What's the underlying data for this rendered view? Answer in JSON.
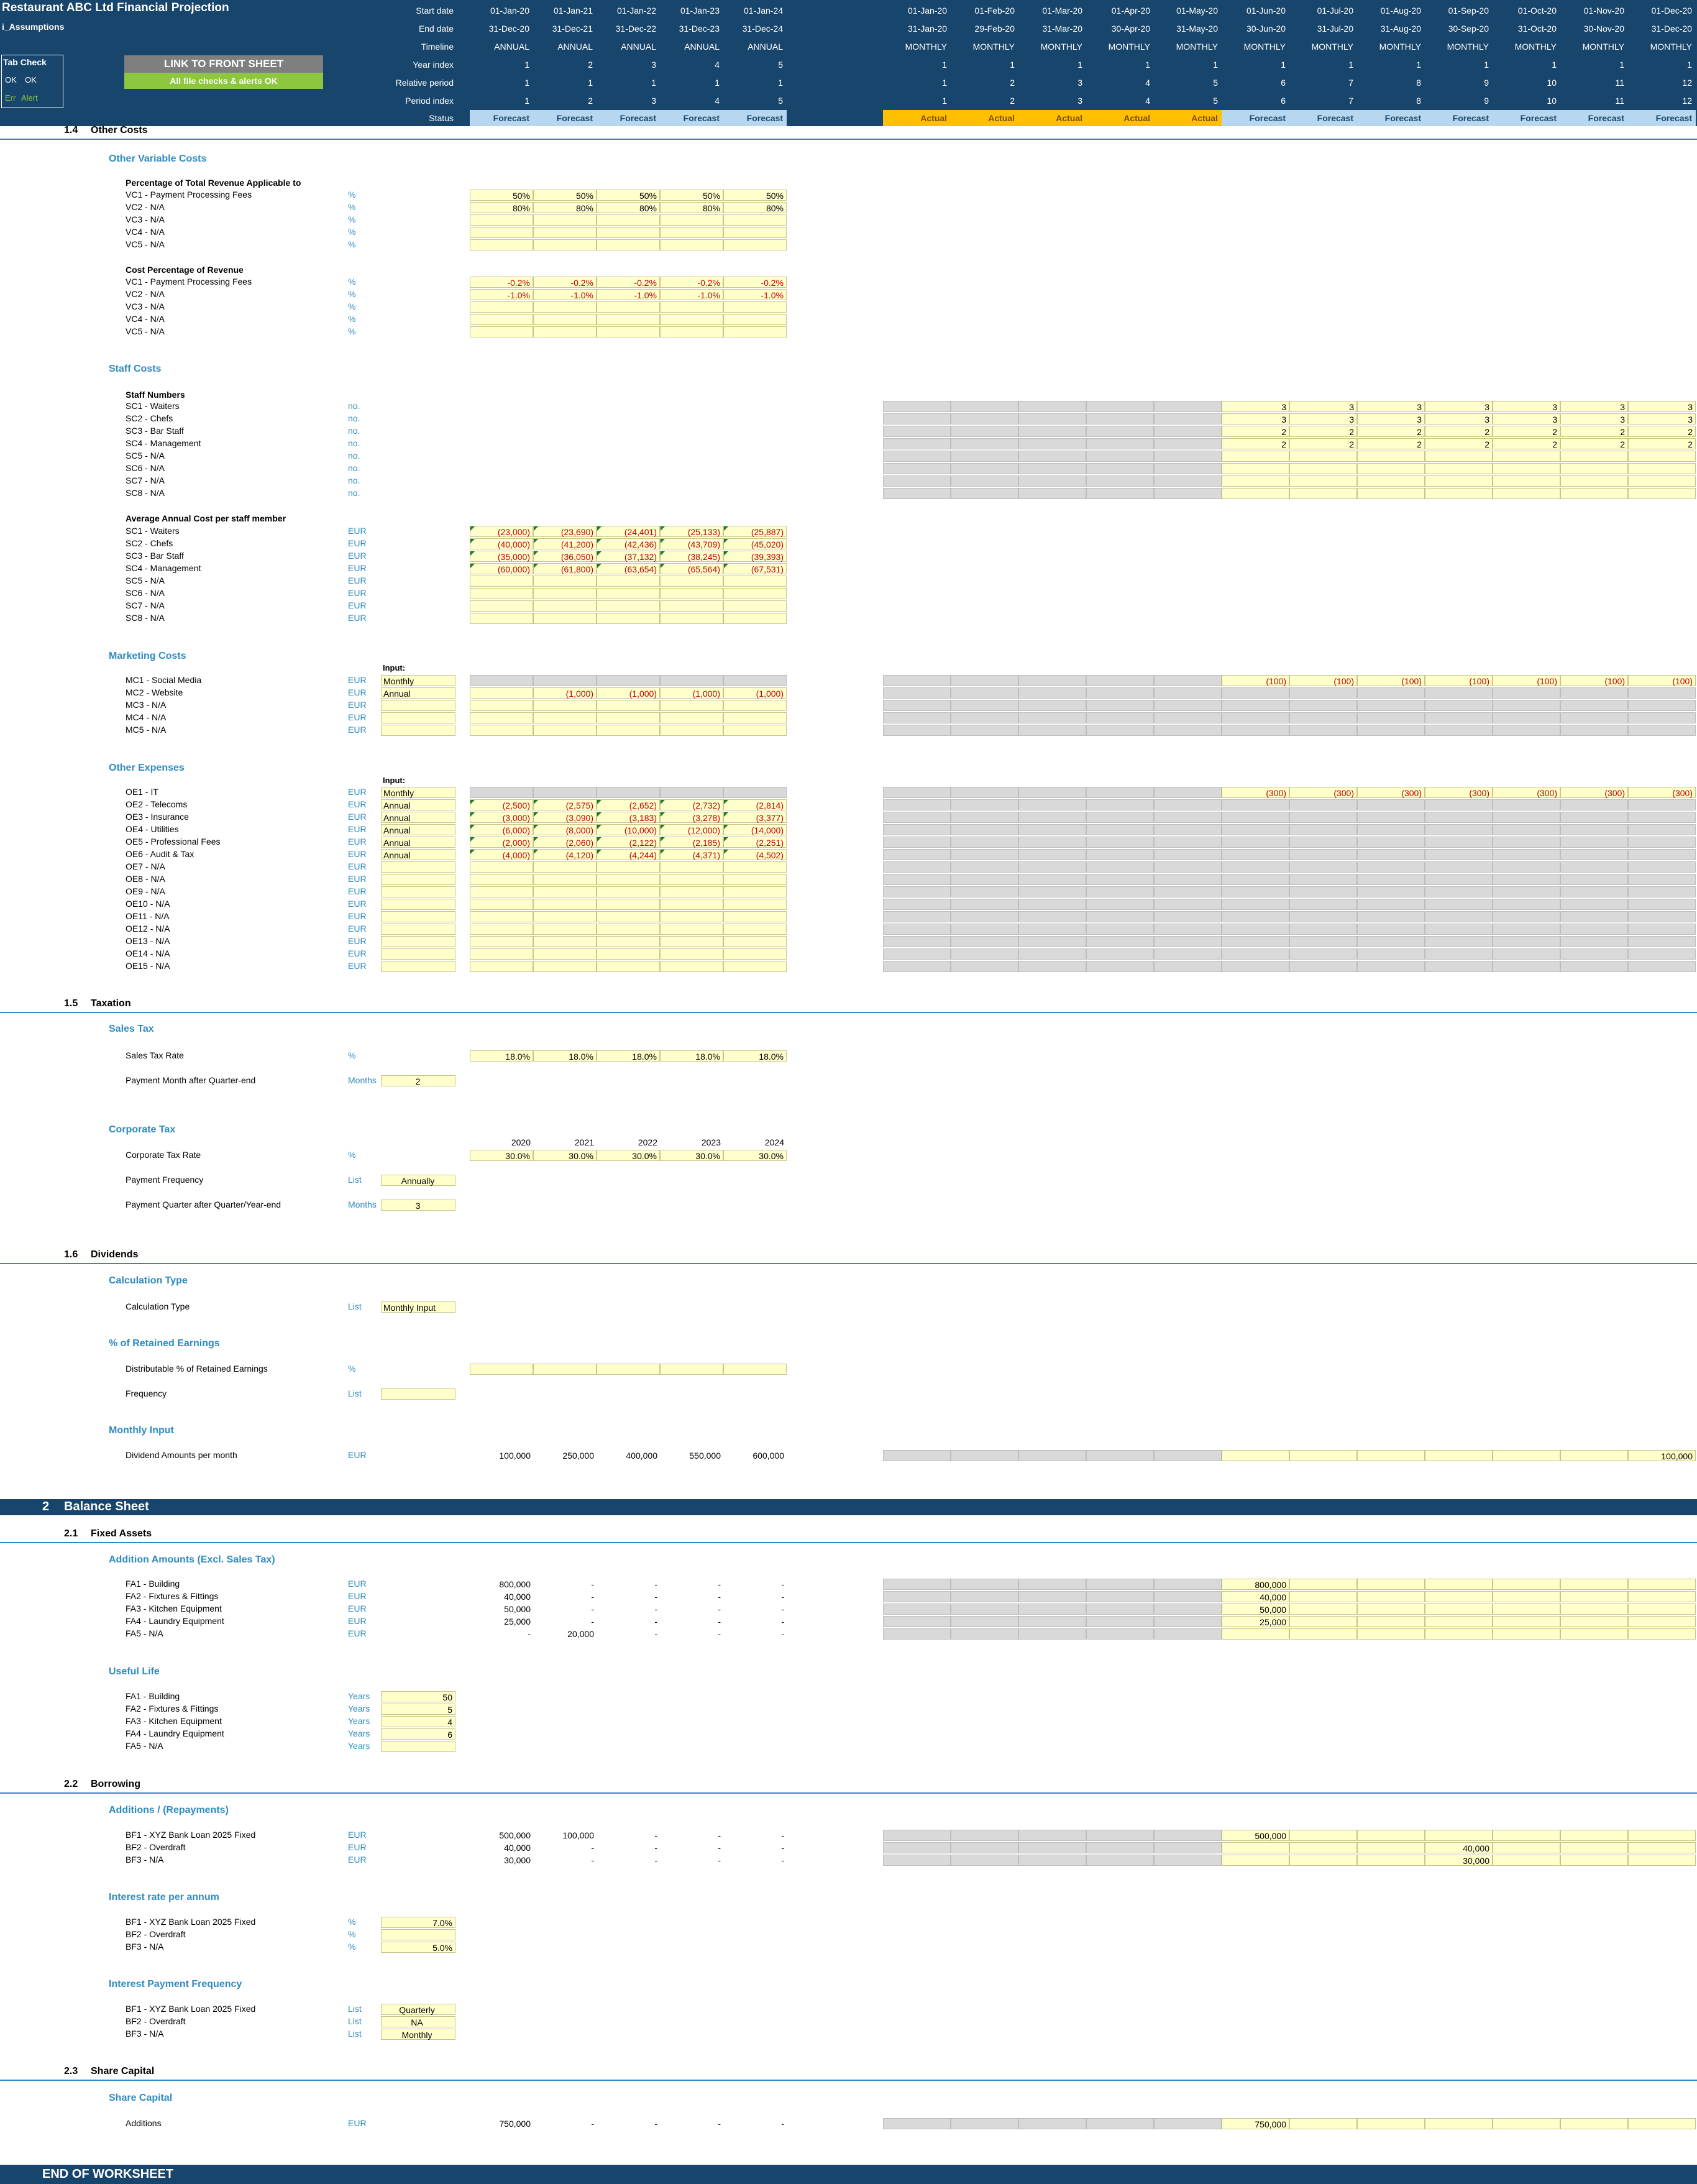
{
  "title": "Restaurant ABC Ltd Financial Projection",
  "sheet": "i_Assumptions",
  "tabcheck": {
    "title": "Tab Check",
    "ok1": "OK",
    "ok2": "OK",
    "err": "Err",
    "alert": "Alert"
  },
  "buttons": {
    "front": "LINK TO FRONT SHEET",
    "checks": "All file checks & alerts OK"
  },
  "row_labels": {
    "start": "Start date",
    "end": "End date",
    "timeline": "Timeline",
    "year": "Year index",
    "relative": "Relative period",
    "period": "Period index",
    "status": "Status"
  },
  "annual": {
    "start": [
      "01-Jan-20",
      "01-Jan-21",
      "01-Jan-22",
      "01-Jan-23",
      "01-Jan-24"
    ],
    "end": [
      "31-Dec-20",
      "31-Dec-21",
      "31-Dec-22",
      "31-Dec-23",
      "31-Dec-24"
    ],
    "timeline": [
      "ANNUAL",
      "ANNUAL",
      "ANNUAL",
      "ANNUAL",
      "ANNUAL"
    ],
    "year": [
      "1",
      "2",
      "3",
      "4",
      "5"
    ],
    "relative": [
      "1",
      "1",
      "1",
      "1",
      "1"
    ],
    "period": [
      "1",
      "2",
      "3",
      "4",
      "5"
    ],
    "status": [
      "Forecast",
      "Forecast",
      "Forecast",
      "Forecast",
      "Forecast"
    ]
  },
  "monthly": {
    "start": [
      "01-Jan-20",
      "01-Feb-20",
      "01-Mar-20",
      "01-Apr-20",
      "01-May-20",
      "01-Jun-20",
      "01-Jul-20",
      "01-Aug-20",
      "01-Sep-20",
      "01-Oct-20",
      "01-Nov-20",
      "01-Dec-20"
    ],
    "end": [
      "31-Jan-20",
      "29-Feb-20",
      "31-Mar-20",
      "30-Apr-20",
      "31-May-20",
      "30-Jun-20",
      "31-Jul-20",
      "31-Aug-20",
      "30-Sep-20",
      "31-Oct-20",
      "30-Nov-20",
      "31-Dec-20"
    ],
    "timeline": [
      "MONTHLY",
      "MONTHLY",
      "MONTHLY",
      "MONTHLY",
      "MONTHLY",
      "MONTHLY",
      "MONTHLY",
      "MONTHLY",
      "MONTHLY",
      "MONTHLY",
      "MONTHLY",
      "MONTHLY"
    ],
    "year": [
      "1",
      "1",
      "1",
      "1",
      "1",
      "1",
      "1",
      "1",
      "1",
      "1",
      "1",
      "1"
    ],
    "relative": [
      "1",
      "2",
      "3",
      "4",
      "5",
      "6",
      "7",
      "8",
      "9",
      "10",
      "11",
      "12"
    ],
    "period": [
      "1",
      "2",
      "3",
      "4",
      "5",
      "6",
      "7",
      "8",
      "9",
      "10",
      "11",
      "12"
    ],
    "status": [
      "Actual",
      "Actual",
      "Actual",
      "Actual",
      "Actual",
      "Forecast",
      "Forecast",
      "Forecast",
      "Forecast",
      "Forecast",
      "Forecast",
      "Forecast"
    ]
  },
  "colors": {
    "navy": "#17456b",
    "accent": "#2e8bc0",
    "actual": "#ffc000",
    "forecast": "#b7d7f0",
    "input": "#ffffcc",
    "negative": "#c00000",
    "grey": "#d9d9d9",
    "button_grey": "#7f7f7f",
    "button_green": "#8dc63f"
  },
  "sections": {
    "s14": {
      "num": "1.4",
      "title": "Other Costs"
    },
    "s15": {
      "num": "1.5",
      "title": "Taxation"
    },
    "s16": {
      "num": "1.6",
      "title": "Dividends"
    },
    "s2": {
      "num": "2",
      "title": "Balance Sheet"
    },
    "s21": {
      "num": "2.1",
      "title": "Fixed Assets"
    },
    "s22": {
      "num": "2.2",
      "title": "Borrowing"
    },
    "s23": {
      "num": "2.3",
      "title": "Share Capital"
    },
    "end": "END OF WORKSHEET"
  },
  "subs": {
    "ovc": "Other Variable Costs",
    "staff": "Staff Costs",
    "mkt": "Marketing Costs",
    "oe": "Other Expenses",
    "stax": "Sales Tax",
    "ctax": "Corporate Tax",
    "calc": "Calculation Type",
    "pct": "% of Retained Earnings",
    "minput": "Monthly Input",
    "fa_add": "Addition Amounts (Excl. Sales Tax)",
    "fa_life": "Useful Life",
    "bf_add": "Additions / (Repayments)",
    "bf_rate": "Interest rate per annum",
    "bf_freq": "Interest Payment Frequency",
    "sc": "Share Capital"
  },
  "groups": {
    "pct_rev": "Percentage of Total Revenue Applicable to",
    "cost_pct": "Cost Percentage of Revenue",
    "staff_num": "Staff Numbers",
    "avg_cost": "Average Annual Cost per staff member",
    "input": "Input:"
  },
  "vc_pct": [
    {
      "label": "VC1 - Payment Processing Fees",
      "unit": "%",
      "annual": [
        "50%",
        "50%",
        "50%",
        "50%",
        "50%"
      ]
    },
    {
      "label": "VC2 - N/A",
      "unit": "%",
      "annual": [
        "80%",
        "80%",
        "80%",
        "80%",
        "80%"
      ]
    },
    {
      "label": "VC3 - N/A",
      "unit": "%",
      "annual": [
        "",
        "",
        "",
        "",
        ""
      ]
    },
    {
      "label": "VC4 - N/A",
      "unit": "%",
      "annual": [
        "",
        "",
        "",
        "",
        ""
      ]
    },
    {
      "label": "VC5 - N/A",
      "unit": "%",
      "annual": [
        "",
        "",
        "",
        "",
        ""
      ]
    }
  ],
  "vc_cost": [
    {
      "label": "VC1 - Payment Processing Fees",
      "unit": "%",
      "annual": [
        "-0.2%",
        "-0.2%",
        "-0.2%",
        "-0.2%",
        "-0.2%"
      ]
    },
    {
      "label": "VC2 - N/A",
      "unit": "%",
      "annual": [
        "-1.0%",
        "-1.0%",
        "-1.0%",
        "-1.0%",
        "-1.0%"
      ]
    },
    {
      "label": "VC3 - N/A",
      "unit": "%",
      "annual": [
        "",
        "",
        "",
        "",
        ""
      ]
    },
    {
      "label": "VC4 - N/A",
      "unit": "%",
      "annual": [
        "",
        "",
        "",
        "",
        ""
      ]
    },
    {
      "label": "VC5 - N/A",
      "unit": "%",
      "annual": [
        "",
        "",
        "",
        "",
        ""
      ]
    }
  ],
  "staff_num": [
    {
      "label": "SC1 - Waiters",
      "unit": "no.",
      "monthly": [
        "3",
        "3",
        "3",
        "3",
        "3",
        "3",
        "3"
      ]
    },
    {
      "label": "SC2 - Chefs",
      "unit": "no.",
      "monthly": [
        "3",
        "3",
        "3",
        "3",
        "3",
        "3",
        "3"
      ]
    },
    {
      "label": "SC3 - Bar Staff",
      "unit": "no.",
      "monthly": [
        "2",
        "2",
        "2",
        "2",
        "2",
        "2",
        "2"
      ]
    },
    {
      "label": "SC4 - Management",
      "unit": "no.",
      "monthly": [
        "2",
        "2",
        "2",
        "2",
        "2",
        "2",
        "2"
      ]
    },
    {
      "label": "SC5 - N/A",
      "unit": "no.",
      "monthly": [
        "",
        "",
        "",
        "",
        "",
        "",
        ""
      ]
    },
    {
      "label": "SC6 - N/A",
      "unit": "no.",
      "monthly": [
        "",
        "",
        "",
        "",
        "",
        "",
        ""
      ]
    },
    {
      "label": "SC7 - N/A",
      "unit": "no.",
      "monthly": [
        "",
        "",
        "",
        "",
        "",
        "",
        ""
      ]
    },
    {
      "label": "SC8 - N/A",
      "unit": "no.",
      "monthly": [
        "",
        "",
        "",
        "",
        "",
        "",
        ""
      ]
    }
  ],
  "staff_cost": [
    {
      "label": "SC1 - Waiters",
      "unit": "EUR",
      "annual": [
        "(23,000)",
        "(23,690)",
        "(24,401)",
        "(25,133)",
        "(25,887)"
      ]
    },
    {
      "label": "SC2 - Chefs",
      "unit": "EUR",
      "annual": [
        "(40,000)",
        "(41,200)",
        "(42,436)",
        "(43,709)",
        "(45,020)"
      ]
    },
    {
      "label": "SC3 - Bar Staff",
      "unit": "EUR",
      "annual": [
        "(35,000)",
        "(36,050)",
        "(37,132)",
        "(38,245)",
        "(39,393)"
      ]
    },
    {
      "label": "SC4 - Management",
      "unit": "EUR",
      "annual": [
        "(60,000)",
        "(61,800)",
        "(63,654)",
        "(65,564)",
        "(67,531)"
      ]
    },
    {
      "label": "SC5 - N/A",
      "unit": "EUR",
      "annual": [
        "",
        "",
        "",
        "",
        ""
      ]
    },
    {
      "label": "SC6 - N/A",
      "unit": "EUR",
      "annual": [
        "",
        "",
        "",
        "",
        ""
      ]
    },
    {
      "label": "SC7 - N/A",
      "unit": "EUR",
      "annual": [
        "",
        "",
        "",
        "",
        ""
      ]
    },
    {
      "label": "SC8 - N/A",
      "unit": "EUR",
      "annual": [
        "",
        "",
        "",
        "",
        ""
      ]
    }
  ],
  "mkt": [
    {
      "label": "MC1 - Social Media",
      "unit": "EUR",
      "input": "Monthly",
      "annual": null,
      "monthly": [
        "(100)",
        "(100)",
        "(100)",
        "(100)",
        "(100)",
        "(100)",
        "(100)"
      ]
    },
    {
      "label": "MC2 - Website",
      "unit": "EUR",
      "input": "Annual",
      "annual": [
        "",
        "(1,000)",
        "(1,000)",
        "(1,000)",
        "(1,000)"
      ],
      "monthly": null
    },
    {
      "label": "MC3 - N/A",
      "unit": "EUR",
      "input": "",
      "annual": [
        "",
        "",
        "",
        "",
        ""
      ],
      "monthly": null
    },
    {
      "label": "MC4 - N/A",
      "unit": "EUR",
      "input": "",
      "annual": [
        "",
        "",
        "",
        "",
        ""
      ],
      "monthly": null
    },
    {
      "label": "MC5 - N/A",
      "unit": "EUR",
      "input": "",
      "annual": [
        "",
        "",
        "",
        "",
        ""
      ],
      "monthly": null
    }
  ],
  "oe": [
    {
      "label": "OE1 - IT",
      "unit": "EUR",
      "input": "Monthly",
      "annual": null,
      "monthly": [
        "(300)",
        "(300)",
        "(300)",
        "(300)",
        "(300)",
        "(300)",
        "(300)"
      ]
    },
    {
      "label": "OE2 - Telecoms",
      "unit": "EUR",
      "input": "Annual",
      "annual": [
        "(2,500)",
        "(2,575)",
        "(2,652)",
        "(2,732)",
        "(2,814)"
      ],
      "monthly": null
    },
    {
      "label": "OE3 - Insurance",
      "unit": "EUR",
      "input": "Annual",
      "annual": [
        "(3,000)",
        "(3,090)",
        "(3,183)",
        "(3,278)",
        "(3,377)"
      ],
      "monthly": null
    },
    {
      "label": "OE4 - Utilities",
      "unit": "EUR",
      "input": "Annual",
      "annual": [
        "(6,000)",
        "(8,000)",
        "(10,000)",
        "(12,000)",
        "(14,000)"
      ],
      "monthly": null
    },
    {
      "label": "OE5 - Professional Fees",
      "unit": "EUR",
      "input": "Annual",
      "annual": [
        "(2,000)",
        "(2,060)",
        "(2,122)",
        "(2,185)",
        "(2,251)"
      ],
      "monthly": null
    },
    {
      "label": "OE6 - Audit & Tax",
      "unit": "EUR",
      "input": "Annual",
      "annual": [
        "(4,000)",
        "(4,120)",
        "(4,244)",
        "(4,371)",
        "(4,502)"
      ],
      "monthly": null
    },
    {
      "label": "OE7 - N/A",
      "unit": "EUR",
      "input": "",
      "annual": [
        "",
        "",
        "",
        "",
        ""
      ],
      "monthly": null
    },
    {
      "label": "OE8 - N/A",
      "unit": "EUR",
      "input": "",
      "annual": [
        "",
        "",
        "",
        "",
        ""
      ],
      "monthly": null
    },
    {
      "label": "OE9 - N/A",
      "unit": "EUR",
      "input": "",
      "annual": [
        "",
        "",
        "",
        "",
        ""
      ],
      "monthly": null
    },
    {
      "label": "OE10 - N/A",
      "unit": "EUR",
      "input": "",
      "annual": [
        "",
        "",
        "",
        "",
        ""
      ],
      "monthly": null
    },
    {
      "label": "OE11 - N/A",
      "unit": "EUR",
      "input": "",
      "annual": [
        "",
        "",
        "",
        "",
        ""
      ],
      "monthly": null
    },
    {
      "label": "OE12 - N/A",
      "unit": "EUR",
      "input": "",
      "annual": [
        "",
        "",
        "",
        "",
        ""
      ],
      "monthly": null
    },
    {
      "label": "OE13 - N/A",
      "unit": "EUR",
      "input": "",
      "annual": [
        "",
        "",
        "",
        "",
        ""
      ],
      "monthly": null
    },
    {
      "label": "OE14 - N/A",
      "unit": "EUR",
      "input": "",
      "annual": [
        "",
        "",
        "",
        "",
        ""
      ],
      "monthly": null
    },
    {
      "label": "OE15 - N/A",
      "unit": "EUR",
      "input": "",
      "annual": [
        "",
        "",
        "",
        "",
        ""
      ],
      "monthly": null
    }
  ],
  "stax": {
    "rate_label": "Sales Tax Rate",
    "rate_unit": "%",
    "rates": [
      "18.0%",
      "18.0%",
      "18.0%",
      "18.0%",
      "18.0%"
    ],
    "pm_label": "Payment Month after Quarter-end",
    "pm_unit": "Months",
    "pm_value": "2"
  },
  "ctax": {
    "years": [
      "2020",
      "2021",
      "2022",
      "2023",
      "2024"
    ],
    "rate_label": "Corporate Tax Rate",
    "rate_unit": "%",
    "rates": [
      "30.0%",
      "30.0%",
      "30.0%",
      "30.0%",
      "30.0%"
    ],
    "freq_label": "Payment Frequency",
    "freq_unit": "List",
    "freq_value": "Annually",
    "pq_label": "Payment Quarter after Quarter/Year-end",
    "pq_unit": "Months",
    "pq_value": "3"
  },
  "div": {
    "calc_label": "Calculation Type",
    "calc_unit": "List",
    "calc_value": "Monthly Input",
    "dist_label": "Distributable % of Retained Earnings",
    "dist_unit": "%",
    "freq_label": "Frequency",
    "freq_unit": "List",
    "amt_label": "Dividend Amounts per month",
    "amt_unit": "EUR",
    "amt_annual": [
      "100,000",
      "250,000",
      "400,000",
      "550,000",
      "600,000"
    ],
    "amt_monthly": [
      "",
      "",
      "",
      "",
      "",
      "",
      "100,000"
    ]
  },
  "fa_add": [
    {
      "label": "FA1 - Building",
      "unit": "EUR",
      "annual": [
        "800,000",
        "-",
        "-",
        "-",
        "-"
      ],
      "monthly": [
        "800,000",
        "",
        "",
        "",
        "",
        "",
        ""
      ]
    },
    {
      "label": "FA2 - Fixtures & Fittings",
      "unit": "EUR",
      "annual": [
        "40,000",
        "-",
        "-",
        "-",
        "-"
      ],
      "monthly": [
        "40,000",
        "",
        "",
        "",
        "",
        "",
        ""
      ]
    },
    {
      "label": "FA3 - Kitchen Equipment",
      "unit": "EUR",
      "annual": [
        "50,000",
        "-",
        "-",
        "-",
        "-"
      ],
      "monthly": [
        "50,000",
        "",
        "",
        "",
        "",
        "",
        ""
      ]
    },
    {
      "label": "FA4 - Laundry Equipment",
      "unit": "EUR",
      "annual": [
        "25,000",
        "-",
        "-",
        "-",
        "-"
      ],
      "monthly": [
        "25,000",
        "",
        "",
        "",
        "",
        "",
        ""
      ]
    },
    {
      "label": "FA5 - N/A",
      "unit": "EUR",
      "annual": [
        "-",
        "20,000",
        "-",
        "-",
        "-"
      ],
      "monthly": [
        "",
        "",
        "",
        "",
        "",
        "",
        ""
      ]
    }
  ],
  "fa_life": [
    {
      "label": "FA1 - Building",
      "unit": "Years",
      "value": "50"
    },
    {
      "label": "FA2 - Fixtures & Fittings",
      "unit": "Years",
      "value": "5"
    },
    {
      "label": "FA3 - Kitchen Equipment",
      "unit": "Years",
      "value": "4"
    },
    {
      "label": "FA4 - Laundry Equipment",
      "unit": "Years",
      "value": "6"
    },
    {
      "label": "FA5 - N/A",
      "unit": "Years",
      "value": ""
    }
  ],
  "bf_add": [
    {
      "label": "BF1 - XYZ Bank Loan 2025 Fixed",
      "unit": "EUR",
      "annual": [
        "500,000",
        "100,000",
        "-",
        "-",
        "-"
      ],
      "monthly": [
        "500,000",
        "",
        "",
        "",
        "",
        "",
        ""
      ]
    },
    {
      "label": "BF2 - Overdraft",
      "unit": "EUR",
      "annual": [
        "40,000",
        "-",
        "-",
        "-",
        "-"
      ],
      "monthly": [
        "",
        "",
        "",
        "40,000",
        "",
        "",
        ""
      ]
    },
    {
      "label": "BF3 - N/A",
      "unit": "EUR",
      "annual": [
        "30,000",
        "-",
        "-",
        "-",
        "-"
      ],
      "monthly": [
        "",
        "",
        "",
        "30,000",
        "",
        "",
        ""
      ]
    }
  ],
  "bf_rate": [
    {
      "label": "BF1 - XYZ Bank Loan 2025 Fixed",
      "unit": "%",
      "value": "7.0%"
    },
    {
      "label": "BF2 - Overdraft",
      "unit": "%",
      "value": ""
    },
    {
      "label": "BF3 - N/A",
      "unit": "%",
      "value": "5.0%"
    }
  ],
  "bf_freq": [
    {
      "label": "BF1 - XYZ Bank Loan 2025 Fixed",
      "unit": "List",
      "value": "Quarterly"
    },
    {
      "label": "BF2 - Overdraft",
      "unit": "List",
      "value": "NA"
    },
    {
      "label": "BF3 - N/A",
      "unit": "List",
      "value": "Monthly"
    }
  ],
  "share": {
    "label": "Additions",
    "unit": "EUR",
    "annual": [
      "750,000",
      "-",
      "-",
      "-",
      "-"
    ],
    "monthly": [
      "750,000",
      "",
      "",
      "",
      "",
      "",
      ""
    ]
  }
}
